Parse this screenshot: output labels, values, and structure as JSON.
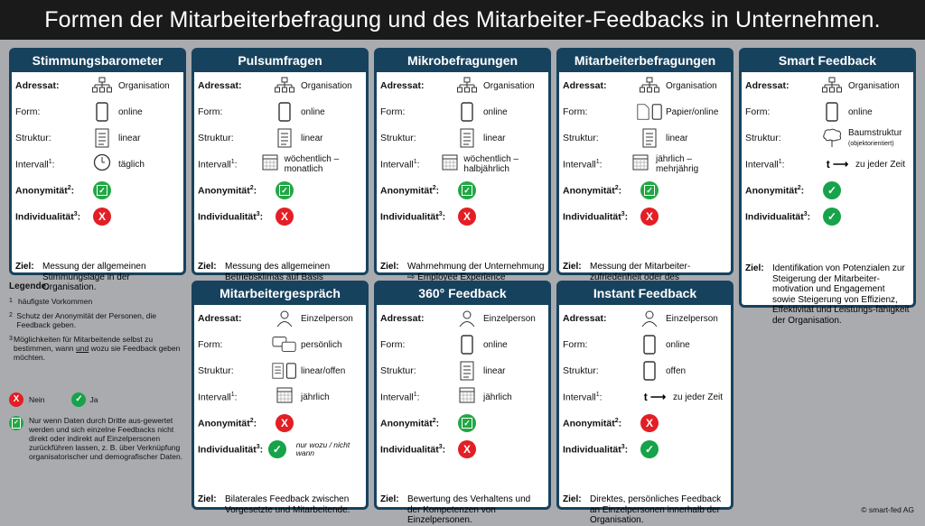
{
  "title": "Formen der Mitarbeiterbefragung und des Mitarbeiter-Feedbacks in Unternehmen.",
  "labels": {
    "adressat": "Adressat:",
    "form": "Form:",
    "struktur": "Struktur:",
    "intervall": "Intervall",
    "anonymitaet": "Anonymität",
    "individualitaet": "Individualität",
    "ziel": "Ziel:"
  },
  "cards": [
    {
      "title": "Stimmungsbarometer",
      "adressat": "Organisation",
      "form": "online",
      "struktur": "linear",
      "intervall": "täglich",
      "ziel": "Messung der allgemeinen Stimmungslage in der Organisation."
    },
    {
      "title": "Pulsumfragen",
      "adressat": "Organisation",
      "form": "online",
      "struktur": "linear",
      "intervall": "wöchentlich – monatlich",
      "ziel": "Messung des allgemeinen Betriebsklimas auf Basis ausgewählter Merkmale."
    },
    {
      "title": "Mikrobefragungen",
      "adressat": "Organisation",
      "form": "online",
      "struktur": "linear",
      "intervall": "wöchentlich – halbjährlich",
      "ziel": "Wahrnehmung der Unternehmung ⇨ Employee Experience Management (EX)."
    },
    {
      "title": "Mitarbeiterbefragungen",
      "adressat": "Organisation",
      "form": "Papier/online",
      "struktur": "linear",
      "intervall": "jährlich – mehrjährig",
      "ziel": "Messung der Mitarbeiter-zufriedenheit oder des Mitarbeiterengagements."
    },
    {
      "title": "Smart Feedback",
      "adressat": "Organisation",
      "form": "online",
      "struktur": "Baumstruktur",
      "struktur_sub": "(objektorientiert)",
      "intervall_t": "t",
      "intervall": "zu jeder Zeit",
      "ziel": "Identifikation von Potenzialen zur Steigerung der Mitarbeiter-motivation und Engagement sowie Steigerung von Effizienz, Effektivität und Leistungs-fähigkeit der Organisation."
    },
    {
      "title": "Mitarbeitergespräch",
      "adressat": "Einzelperson",
      "form": "persönlich",
      "struktur": "linear/offen",
      "intervall": "jährlich",
      "individual_note": "nur wozu / nicht wann",
      "ziel": "Bilaterales Feedback zwischen Vorgesetzte und Mitarbeitende."
    },
    {
      "title": "360° Feedback",
      "adressat": "Einzelperson",
      "form": "online",
      "struktur": "linear",
      "intervall": "jährlich",
      "ziel": "Bewertung des Verhaltens und der Kompetenzen von Einzelpersonen."
    },
    {
      "title": "Instant Feedback",
      "adressat": "Einzelperson",
      "form": "online",
      "struktur": "offen",
      "intervall_t": "t",
      "intervall": "zu jeder Zeit",
      "ziel": "Direktes, persönliches Feedback an Einzelpersonen innerhalb der Organisation."
    }
  ],
  "legend": {
    "title": "Legende:",
    "n1": "häufigste Vorkommen",
    "n2": "Schutz der Anonymität der Personen, die Feedback geben.",
    "n3a": "Möglichkeiten für Mitarbeitende selbst zu bestimmen, wann ",
    "n3u": "und",
    "n3b": " wozu sie Feedback geben möchten.",
    "nein": "Nein",
    "ja": "Ja",
    "partial": "Nur wenn Daten durch Dritte aus-gewertet werden und sich einzelne Feedbacks nicht direkt oder indirekt auf Einzelpersonen zurückführen lassen, z. B. über Verknüpfung organisatorischer und demografischer Daten."
  },
  "copyright": "© smart-fed AG",
  "colors": {
    "header": "#17425e",
    "no": "#e31e24",
    "yes": "#16a34a",
    "bg": "#a9abae"
  }
}
